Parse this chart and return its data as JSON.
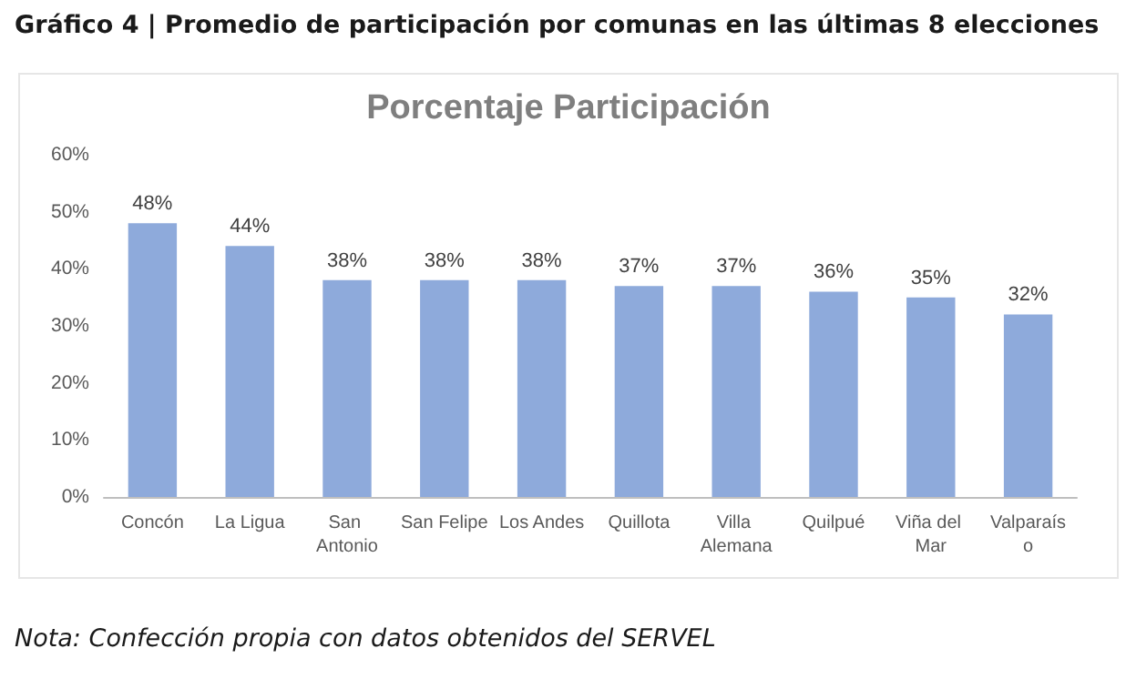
{
  "chart_data": {
    "type": "bar",
    "title": "Gráfico 4 | Promedio de participación por comunas en las últimas 8 elecciones",
    "subtitle": "Porcentaje Participación",
    "categories": [
      "Concón",
      "La Ligua",
      "San Antonio",
      "San Felipe",
      "Los Andes",
      "Quillota",
      "Villa Alemana",
      "Quilpué",
      "Viña del Mar",
      "Valparaíso"
    ],
    "values": [
      48,
      44,
      38,
      38,
      38,
      37,
      37,
      36,
      35,
      32
    ],
    "value_labels": [
      "48%",
      "44%",
      "38%",
      "38%",
      "38%",
      "37%",
      "37%",
      "36%",
      "35%",
      "32%"
    ],
    "color": "#8eaadb",
    "ylim": [
      0,
      60
    ],
    "yticks": [
      {
        "value": 0,
        "label": "0%"
      },
      {
        "value": 10,
        "label": "10%"
      },
      {
        "value": 20,
        "label": "20%"
      },
      {
        "value": 30,
        "label": "30%"
      },
      {
        "value": 40,
        "label": "40%"
      },
      {
        "value": 50,
        "label": "50%"
      },
      {
        "value": 60,
        "label": "60%"
      }
    ],
    "grid": false,
    "annotations": [
      "Nota: Confección propia con datos obtenidos del SERVEL"
    ]
  }
}
